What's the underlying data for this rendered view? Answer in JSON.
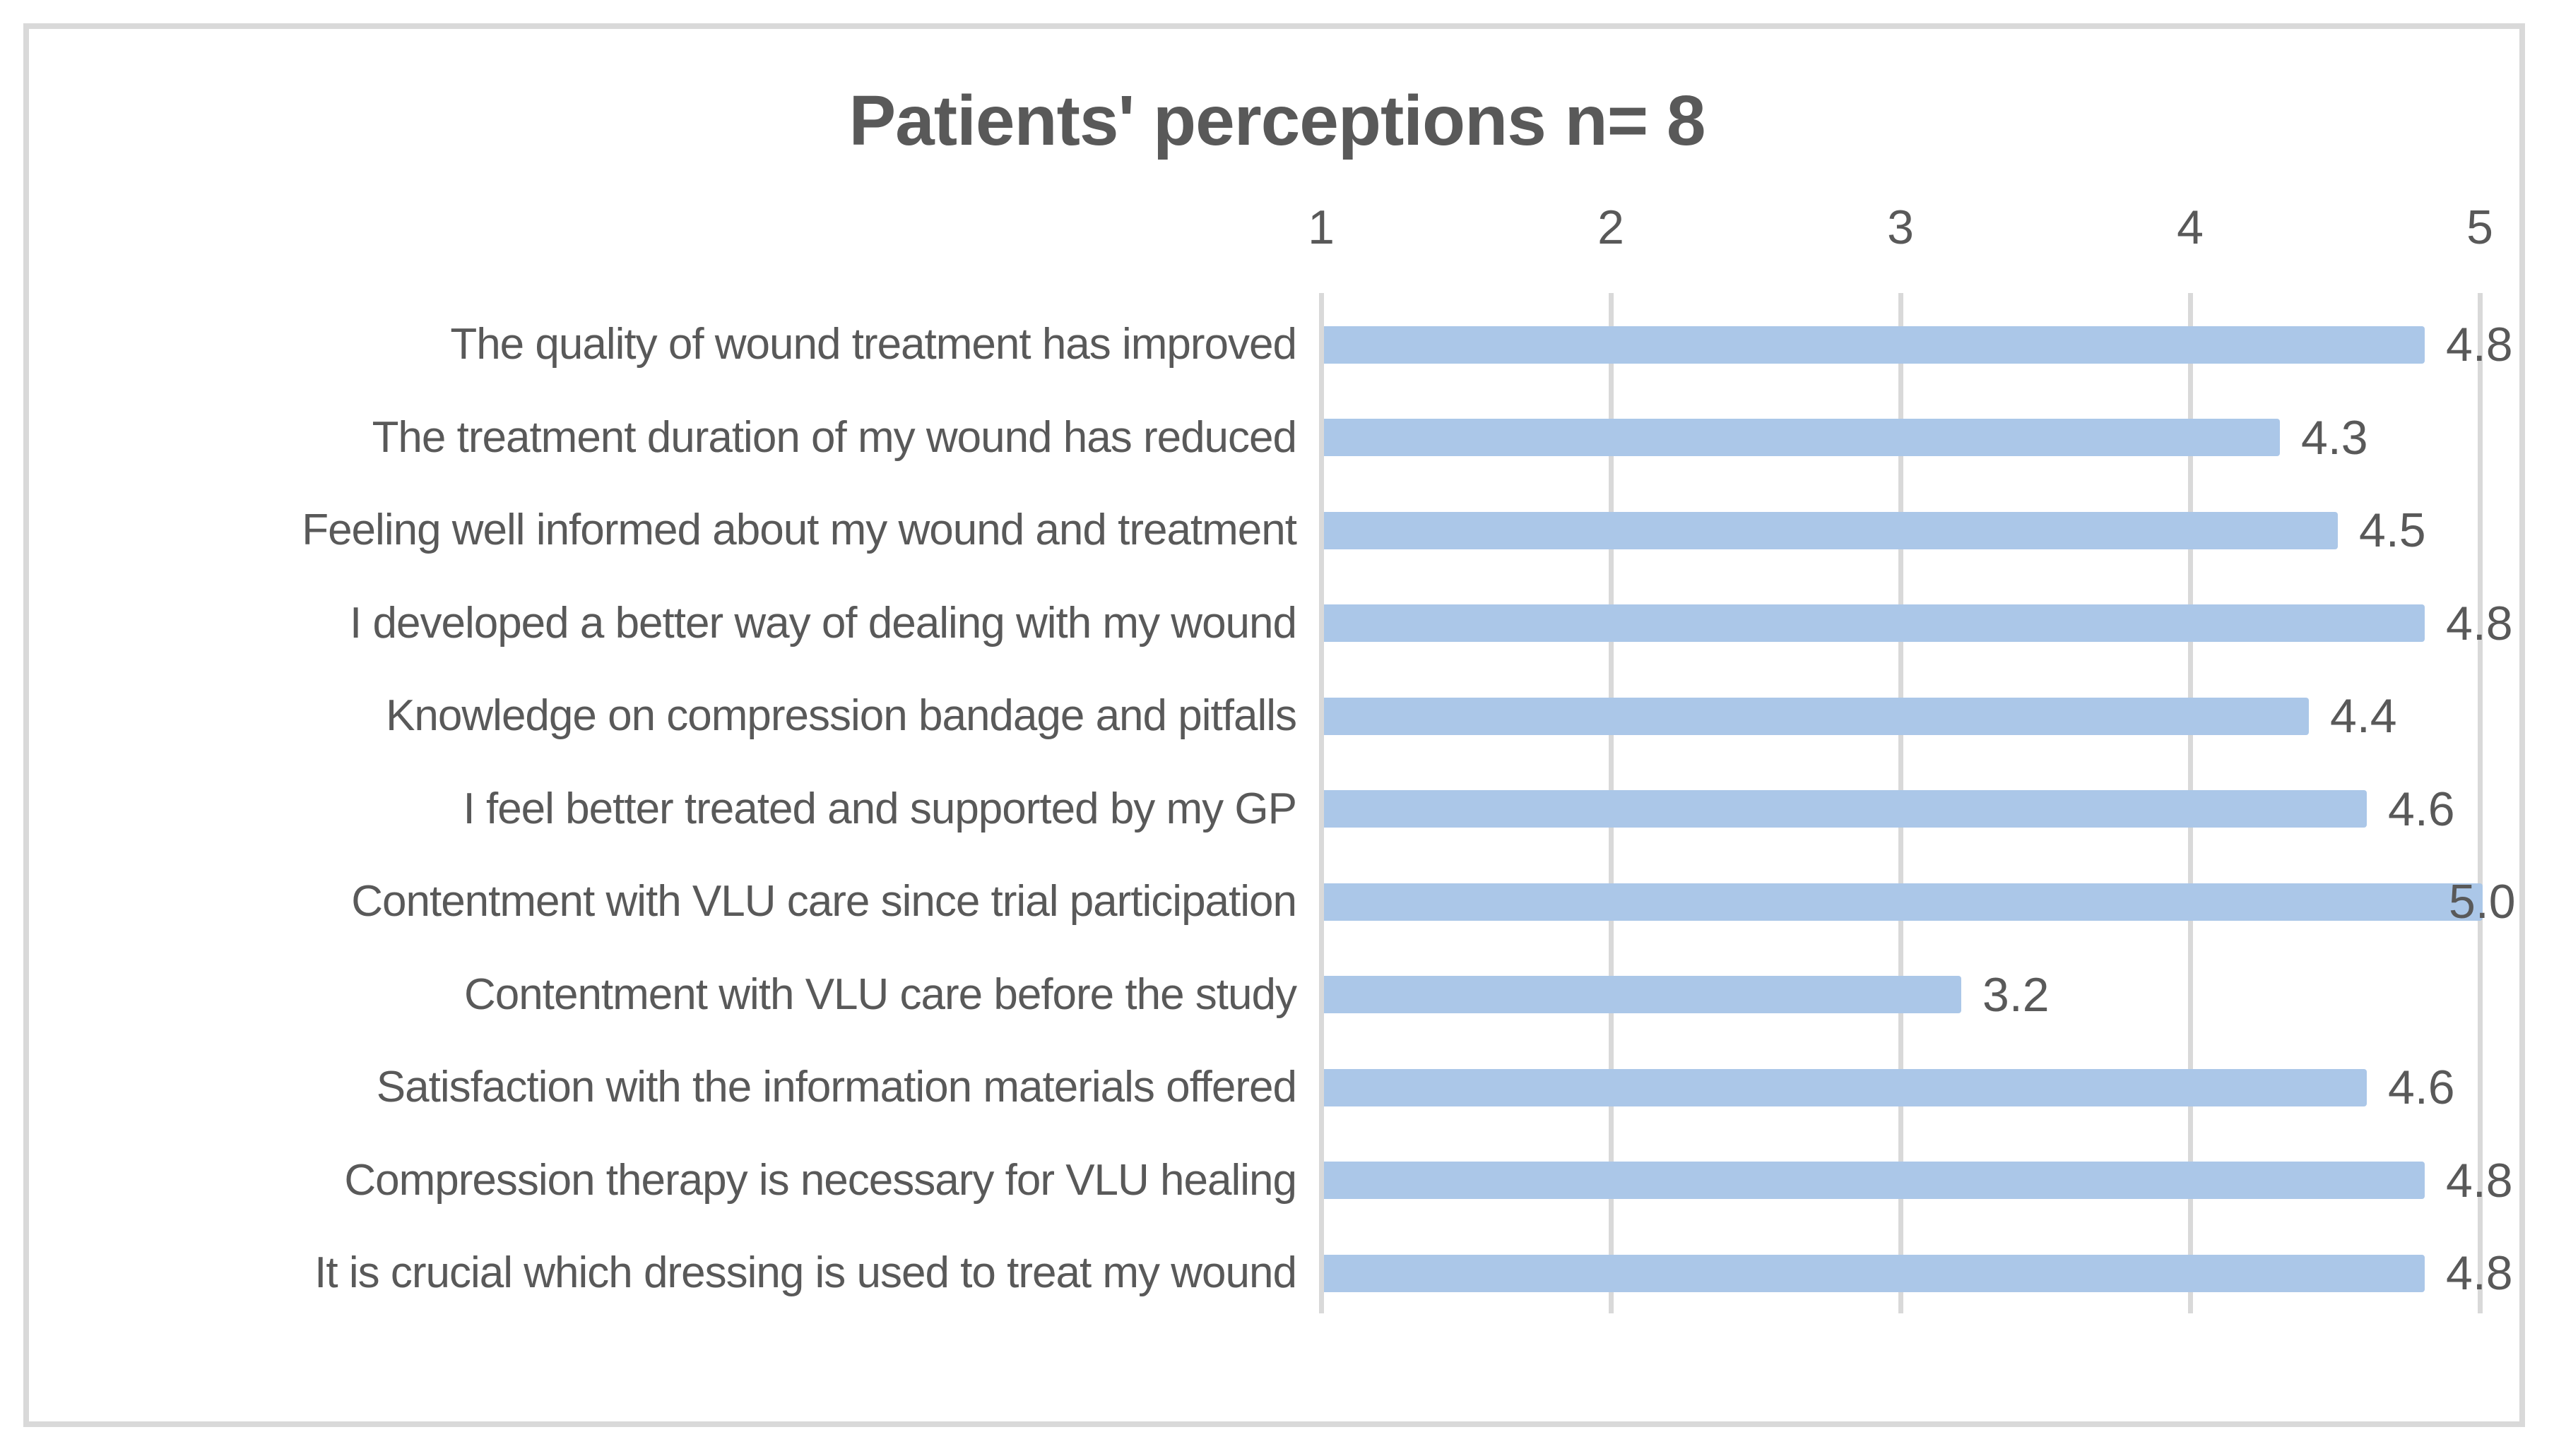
{
  "title": "Patients' perceptions n= 8",
  "colors": {
    "bar_fill": "#abc7e8",
    "text_gray": "#595959",
    "grid_gray": "#d9d9d9"
  },
  "chart_data": {
    "type": "bar",
    "orientation": "horizontal",
    "title": "Patients' perceptions n= 8",
    "categories": [
      "The quality of wound treatment has improved",
      "The treatment duration of my wound has reduced",
      "Feeling well informed about my wound and treatment",
      "I developed a better way of dealing with my wound",
      "Knowledge on compression bandage and pitfalls",
      "I feel better treated and supported by my GP",
      "Contentment with VLU care since trial participation",
      "Contentment with VLU care before the study",
      "Satisfaction with the information materials offered",
      "Compression therapy is necessary for VLU healing",
      "It is crucial which dressing is used to treat my wound"
    ],
    "values": [
      4.8,
      4.3,
      4.5,
      4.8,
      4.4,
      4.6,
      5.0,
      3.2,
      4.6,
      4.8,
      4.8
    ],
    "value_labels": [
      "4.8",
      "4.3",
      "4.5",
      "4.8",
      "4.4",
      "4.6",
      "5.0",
      "3.2",
      "4.6",
      "4.8",
      "4.8"
    ],
    "x_ticks": [
      "1",
      "2",
      "3",
      "4",
      "5"
    ],
    "xlim": [
      1,
      5
    ],
    "grid": true,
    "legend": "none",
    "xlabel": "",
    "ylabel": ""
  }
}
